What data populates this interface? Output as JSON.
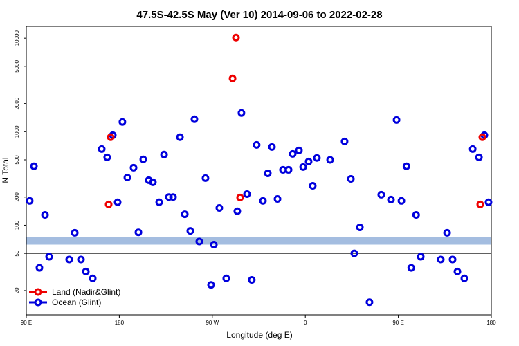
{
  "chart_data": {
    "type": "scatter",
    "title": "47.5S-42.5S May (Ver 10)   2014-09-06 to 2022-02-28",
    "x_label": "Longitude (deg E)",
    "y_label": "N Total",
    "log_y": true,
    "xlim": [
      90,
      540
    ],
    "ylim": [
      11,
      13400
    ],
    "xticks": [
      {
        "value": 90,
        "label": "90 E"
      },
      180,
      {
        "value": 270,
        "label": "90 W"
      },
      {
        "value": 360,
        "label": "0"
      },
      {
        "value": 450,
        "label": "90 E"
      },
      {
        "value": 540,
        "label": "180"
      }
    ],
    "yticks": [
      20,
      50,
      100,
      200,
      500,
      1000,
      2000,
      5000,
      10000
    ],
    "band": [
      62,
      75
    ],
    "band_color": "#a4bde0",
    "hline": 50,
    "legend": "bottom-left",
    "series": [
      {
        "name": "Land (Nadir&Glint)",
        "color": "#ee0000",
        "x": [
          169.7,
          171.7,
          289.6,
          292.9,
          296.9,
          529.3,
          531.3
        ],
        "values": [
          167,
          873,
          3715,
          10160,
          198,
          167,
          873
        ]
      },
      {
        "name": "Ocean (Glint)",
        "color": "#0000dd",
        "x": [
          93.3,
          97.4,
          102.7,
          108.1,
          112.1,
          131.5,
          136.9,
          142.9,
          147.6,
          154.3,
          163,
          168.3,
          173.7,
          178.4,
          183,
          187.8,
          193.8,
          198.5,
          203.2,
          208.5,
          212.5,
          218.6,
          223.3,
          228,
          232,
          238.7,
          243.4,
          248.7,
          252.7,
          257.4,
          263.4,
          268.8,
          271.5,
          276.8,
          283.5,
          294.2,
          298.2,
          303.6,
          308.2,
          312.9,
          319,
          323.7,
          327.7,
          333.1,
          338.4,
          343.8,
          347.8,
          353.8,
          357.9,
          363.2,
          367.2,
          371.2,
          384,
          398,
          404.1,
          407.4,
          412.8,
          422.1,
          433.5,
          442.9,
          448.3,
          453,
          457.9,
          462.5,
          467.2,
          471.7,
          491.1,
          497.2,
          502.5,
          507.2,
          513.9,
          522,
          528,
          533.3,
          537.3
        ],
        "values": [
          182,
          427,
          35,
          129,
          46,
          43,
          83,
          43,
          32,
          27,
          653,
          532,
          918,
          176,
          1270,
          324,
          412,
          84,
          506,
          303,
          288,
          176,
          570,
          200,
          200,
          873,
          131,
          87,
          1360,
          67,
          319,
          23,
          62,
          153,
          27,
          141,
          1585,
          215,
          26,
          723,
          182,
          359,
          687,
          191,
          391,
          391,
          579,
          631,
          419,
          480,
          264,
          524,
          500,
          787,
          313,
          50,
          95,
          15,
          212,
          188,
          1336,
          182,
          427,
          35,
          129,
          46,
          43,
          83,
          43,
          32,
          27,
          653,
          532,
          918,
          176
        ]
      }
    ]
  }
}
